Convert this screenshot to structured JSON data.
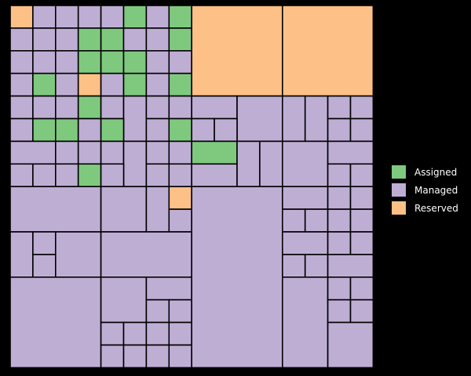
{
  "colors": {
    "background": "#000000",
    "stroke": "#000000",
    "assigned": "#7fc97f",
    "managed": "#beaed4",
    "reserved": "#fdc086"
  },
  "legend": {
    "items": [
      {
        "label": "Assigned",
        "status": "assigned"
      },
      {
        "label": "Managed",
        "status": "managed"
      },
      {
        "label": "Reserved",
        "status": "reserved"
      }
    ]
  }
}
